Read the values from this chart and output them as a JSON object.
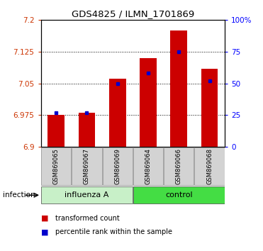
{
  "title": "GDS4825 / ILMN_1701869",
  "samples": [
    "GSM869065",
    "GSM869067",
    "GSM869069",
    "GSM869064",
    "GSM869066",
    "GSM869068"
  ],
  "transformed_counts": [
    6.975,
    6.98,
    7.062,
    7.11,
    7.175,
    7.085
  ],
  "percentile_ranks": [
    27,
    27,
    50,
    58,
    75,
    52
  ],
  "y_min": 6.9,
  "y_max": 7.2,
  "y_ticks_left": [
    6.9,
    6.975,
    7.05,
    7.125,
    7.2
  ],
  "y_ticks_right": [
    0,
    25,
    50,
    75,
    100
  ],
  "bar_color": "#cc0000",
  "dot_color": "#0000cc",
  "base": 6.9,
  "legend_red": "transformed count",
  "legend_blue": "percentile rank within the sample",
  "tick_bg": "#d3d3d3",
  "influenza_color": "#c8f0c8",
  "control_color": "#44dd44",
  "grid_ticks": [
    6.975,
    7.05,
    7.125
  ]
}
